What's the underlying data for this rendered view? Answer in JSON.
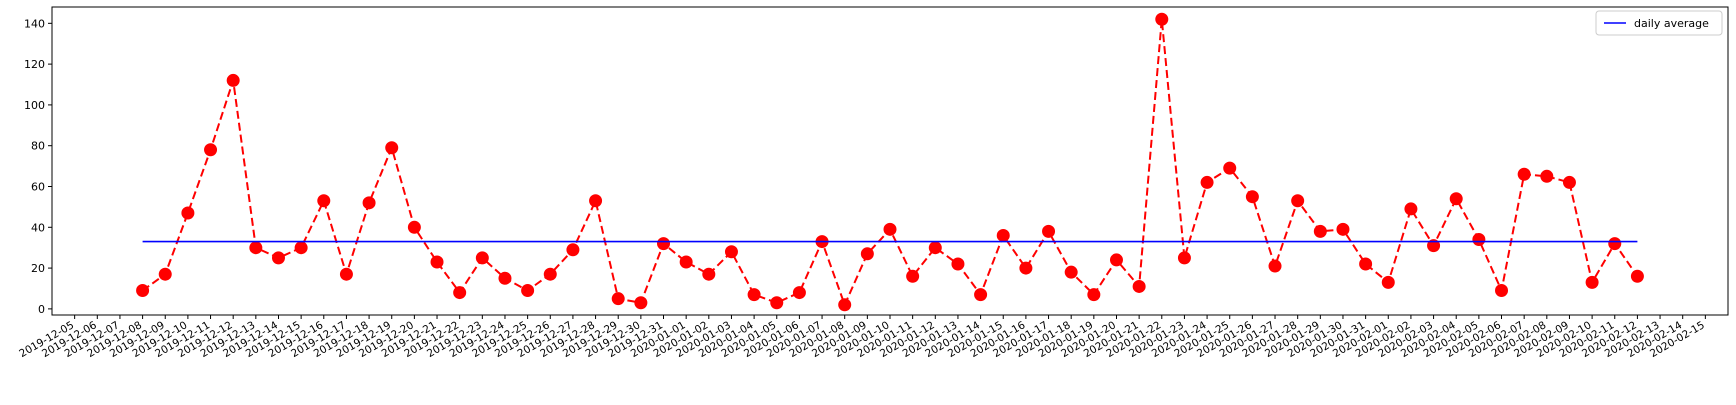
{
  "chart_data": {
    "type": "line",
    "title": "",
    "xlabel": "",
    "ylabel": "",
    "x_ticks": [
      "2019-12-05",
      "2019-12-06",
      "2019-12-07",
      "2019-12-08",
      "2019-12-09",
      "2019-12-10",
      "2019-12-11",
      "2019-12-12",
      "2019-12-13",
      "2019-12-14",
      "2019-12-15",
      "2019-12-16",
      "2019-12-17",
      "2019-12-18",
      "2019-12-19",
      "2019-12-20",
      "2019-12-21",
      "2019-12-22",
      "2019-12-23",
      "2019-12-24",
      "2019-12-25",
      "2019-12-26",
      "2019-12-27",
      "2019-12-28",
      "2019-12-29",
      "2019-12-30",
      "2019-12-31",
      "2020-01-01",
      "2020-01-02",
      "2020-01-03",
      "2020-01-04",
      "2020-01-05",
      "2020-01-06",
      "2020-01-07",
      "2020-01-08",
      "2020-01-09",
      "2020-01-10",
      "2020-01-11",
      "2020-01-12",
      "2020-01-13",
      "2020-01-14",
      "2020-01-15",
      "2020-01-16",
      "2020-01-17",
      "2020-01-18",
      "2020-01-19",
      "2020-01-20",
      "2020-01-21",
      "2020-01-22",
      "2020-01-23",
      "2020-01-24",
      "2020-01-25",
      "2020-01-26",
      "2020-01-27",
      "2020-01-28",
      "2020-01-29",
      "2020-01-30",
      "2020-01-31",
      "2020-02-01",
      "2020-02-02",
      "2020-02-03",
      "2020-02-04",
      "2020-02-05",
      "2020-02-06",
      "2020-02-07",
      "2020-02-08",
      "2020-02-09",
      "2020-02-10",
      "2020-02-11",
      "2020-02-12",
      "2020-02-13",
      "2020-02-14",
      "2020-02-15"
    ],
    "y_ticks": [
      "0",
      "20",
      "40",
      "60",
      "80",
      "100",
      "120",
      "140"
    ],
    "xlim": [
      "2019-12-05",
      "2020-02-15"
    ],
    "ylim": [
      -3,
      148
    ],
    "grid": false,
    "legend_position": "top-right",
    "series": [
      {
        "name": "",
        "style": "dashed-line-with-circle-markers",
        "color": "#ff0000",
        "x": [
          "2019-12-08",
          "2019-12-09",
          "2019-12-10",
          "2019-12-11",
          "2019-12-12",
          "2019-12-13",
          "2019-12-14",
          "2019-12-15",
          "2019-12-16",
          "2019-12-17",
          "2019-12-18",
          "2019-12-19",
          "2019-12-20",
          "2019-12-21",
          "2019-12-22",
          "2019-12-23",
          "2019-12-24",
          "2019-12-25",
          "2019-12-26",
          "2019-12-27",
          "2019-12-28",
          "2019-12-29",
          "2019-12-30",
          "2019-12-31",
          "2020-01-01",
          "2020-01-02",
          "2020-01-03",
          "2020-01-04",
          "2020-01-05",
          "2020-01-06",
          "2020-01-07",
          "2020-01-08",
          "2020-01-09",
          "2020-01-10",
          "2020-01-11",
          "2020-01-12",
          "2020-01-13",
          "2020-01-14",
          "2020-01-15",
          "2020-01-16",
          "2020-01-17",
          "2020-01-18",
          "2020-01-19",
          "2020-01-20",
          "2020-01-21",
          "2020-01-22",
          "2020-01-23",
          "2020-01-24",
          "2020-01-25",
          "2020-01-26",
          "2020-01-27",
          "2020-01-28",
          "2020-01-29",
          "2020-01-30",
          "2020-01-31",
          "2020-02-01",
          "2020-02-02",
          "2020-02-03",
          "2020-02-04",
          "2020-02-05",
          "2020-02-06",
          "2020-02-07",
          "2020-02-08",
          "2020-02-09",
          "2020-02-10",
          "2020-02-11",
          "2020-02-12"
        ],
        "values": [
          9,
          17,
          47,
          78,
          112,
          30,
          25,
          30,
          53,
          17,
          52,
          79,
          40,
          23,
          8,
          25,
          15,
          9,
          17,
          29,
          53,
          5,
          3,
          32,
          23,
          17,
          28,
          7,
          3,
          8,
          33,
          2,
          27,
          39,
          16,
          30,
          22,
          7,
          36,
          20,
          38,
          18,
          7,
          24,
          11,
          142,
          25,
          62,
          69,
          55,
          21,
          53,
          38,
          39,
          22,
          13,
          49,
          31,
          54,
          34,
          9,
          66,
          65,
          62,
          13,
          32,
          16
        ]
      },
      {
        "name": "daily average",
        "style": "solid-line",
        "color": "#0000ff",
        "x": [
          "2019-12-08",
          "2020-02-12"
        ],
        "values": [
          33,
          33
        ]
      }
    ]
  }
}
